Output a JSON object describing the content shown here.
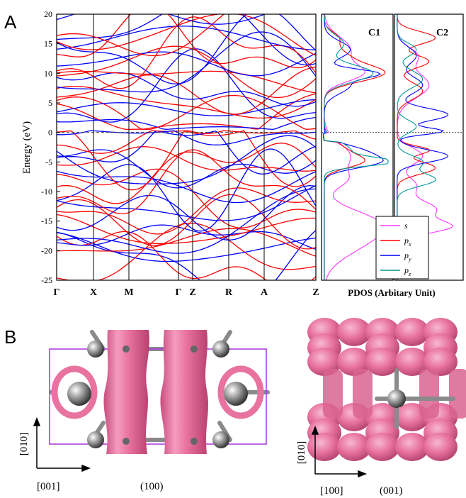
{
  "panels": {
    "a": {
      "letter": "A"
    },
    "b": {
      "letter": "B"
    }
  },
  "chart_data": [
    {
      "type": "line",
      "ylabel": "Energy (eV)",
      "ylim": [
        -25,
        20
      ],
      "yticks": [
        "20",
        "15",
        "10",
        "5",
        "0",
        "-5",
        "-10",
        "-15",
        "-20",
        "-25"
      ],
      "yvals": [
        20,
        15,
        10,
        5,
        0,
        -5,
        -10,
        -15,
        -20,
        -25
      ],
      "kpath": [
        "Γ",
        "X",
        "M",
        "Γ",
        "Z",
        "R",
        "A",
        "Z"
      ],
      "fermi_level": 0,
      "series_colors": [
        "#ff0000",
        "#0000ff"
      ],
      "xlabel": ""
    },
    {
      "type": "line",
      "xlabel": "PDOS (Arbitary Unit)",
      "panels": [
        "C1",
        "C2"
      ],
      "legend": {
        "entries": [
          {
            "label": "s",
            "color": "#ff33ff"
          },
          {
            "label": "p",
            "sub": "x",
            "color": "#ff0000"
          },
          {
            "label": "p",
            "sub": "y",
            "color": "#0000ff"
          },
          {
            "label": "p",
            "sub": "z",
            "color": "#009999"
          }
        ],
        "position": "bottom-right"
      }
    }
  ],
  "structures": {
    "left": {
      "plane": "(100)",
      "axis_vertical": "[010]",
      "axis_horizontal": "[001]"
    },
    "right": {
      "plane": "(001)",
      "axis_vertical": "[010]",
      "axis_horizontal": "[100]"
    }
  },
  "colors": {
    "isosurface": "#e8739e",
    "atom": "#888888",
    "cell": "#b040e0"
  }
}
